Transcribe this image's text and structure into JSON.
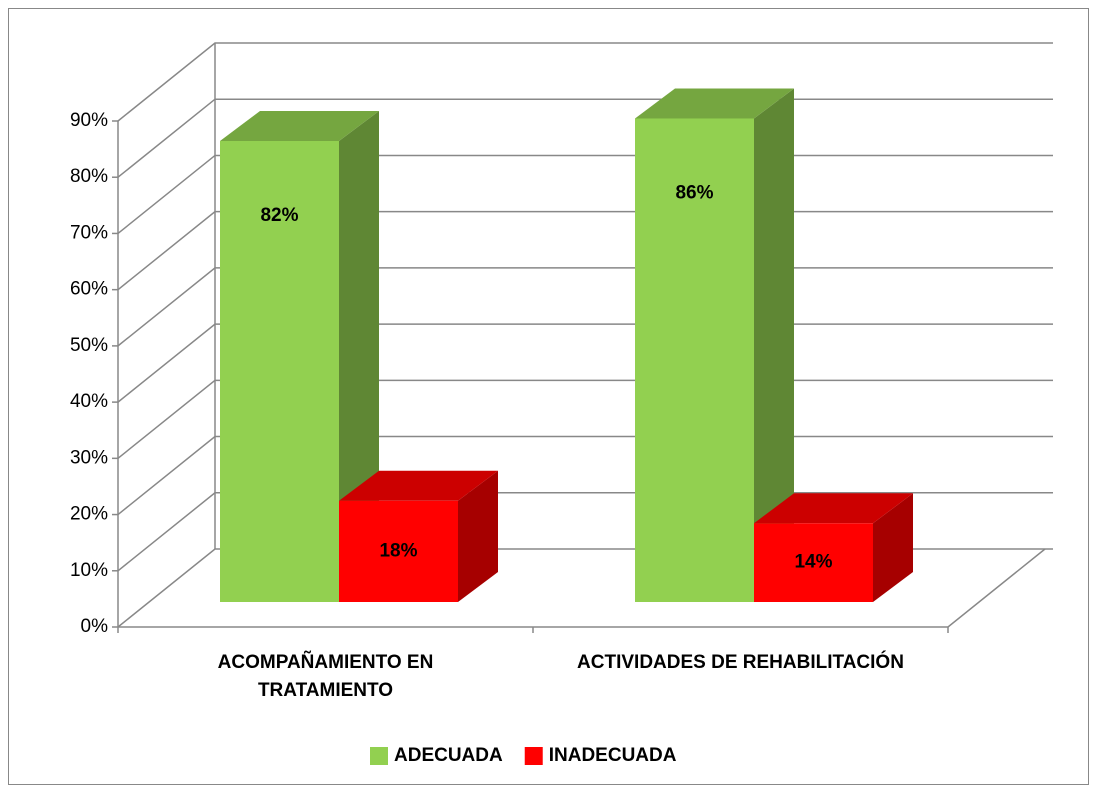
{
  "chart_data": {
    "type": "bar3d",
    "categories": [
      "ACOMPAÑAMIENTO EN TRATAMIENTO",
      "ACTIVIDADES DE REHABILITACIÓN"
    ],
    "series": [
      {
        "name": "ADECUADA",
        "color": "#92d050",
        "values": [
          82,
          86
        ],
        "value_labels": [
          "82%",
          "86%"
        ]
      },
      {
        "name": "INADECUADA",
        "color": "#ff0000",
        "values": [
          18,
          14
        ],
        "value_labels": [
          "18%",
          "14%"
        ]
      }
    ],
    "ylim": [
      0,
      90
    ],
    "yticks": [
      {
        "value": 0,
        "label": "0%"
      },
      {
        "value": 10,
        "label": "10%"
      },
      {
        "value": 20,
        "label": "20%"
      },
      {
        "value": 30,
        "label": "30%"
      },
      {
        "value": 40,
        "label": "40%"
      },
      {
        "value": 50,
        "label": "50%"
      },
      {
        "value": 60,
        "label": "60%"
      },
      {
        "value": 70,
        "label": "70%"
      },
      {
        "value": 80,
        "label": "80%"
      },
      {
        "value": 90,
        "label": "90%"
      }
    ],
    "grid": true,
    "legend": "bottom"
  }
}
